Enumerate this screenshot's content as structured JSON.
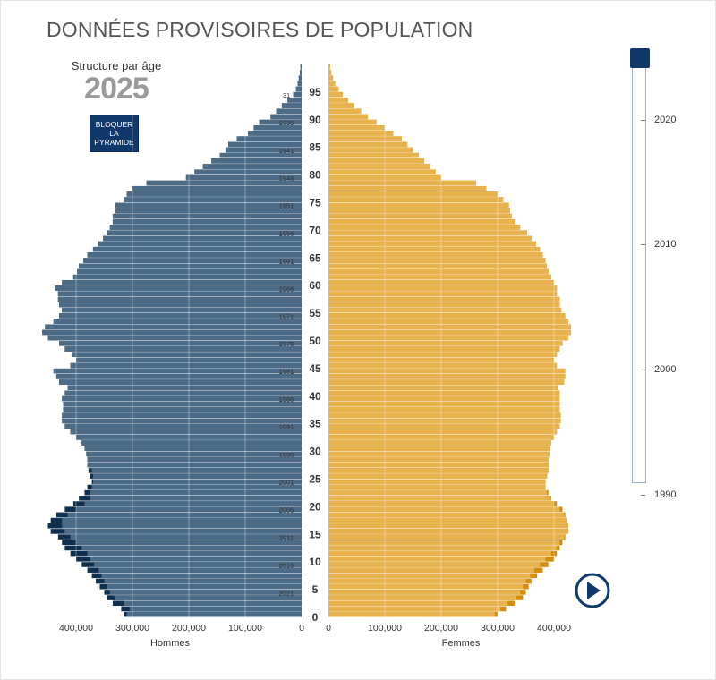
{
  "title": "DONNÉES PROVISOIRES DE POPULATION",
  "subtitle": "Structure par âge",
  "year": "2025",
  "lock_button_label": "BLOQUER\nLA\nPYRAMIDE",
  "slider": {
    "labels": [
      "2020",
      "2010",
      "2000",
      "1990"
    ],
    "selected": "2025"
  },
  "colors": {
    "men_dark": "#0f2f4f",
    "men": "#4b6b86",
    "women_dark": "#d48c0a",
    "women": "#e8b24e",
    "accent": "#11386b"
  },
  "chart_data": {
    "type": "bar",
    "orientation": "horizontal-pyramid",
    "age_ticks": [
      0,
      5,
      10,
      15,
      20,
      25,
      30,
      35,
      40,
      45,
      50,
      55,
      60,
      65,
      70,
      75,
      80,
      85,
      90,
      95
    ],
    "age_max": 100,
    "birth_year_labels": [
      {
        "age": 4,
        "label": "2021"
      },
      {
        "age": 9,
        "label": "2016"
      },
      {
        "age": 14,
        "label": "2011"
      },
      {
        "age": 19,
        "label": "2006"
      },
      {
        "age": 24,
        "label": "2001"
      },
      {
        "age": 29,
        "label": "1996"
      },
      {
        "age": 34,
        "label": "1991"
      },
      {
        "age": 39,
        "label": "1986"
      },
      {
        "age": 44,
        "label": "1981"
      },
      {
        "age": 49,
        "label": "1976"
      },
      {
        "age": 54,
        "label": "1971"
      },
      {
        "age": 59,
        "label": "1966"
      },
      {
        "age": 64,
        "label": "1961"
      },
      {
        "age": 69,
        "label": "1956"
      },
      {
        "age": 74,
        "label": "1951"
      },
      {
        "age": 79,
        "label": "1946"
      },
      {
        "age": 84,
        "label": "1941"
      },
      {
        "age": 89,
        "label": "1936"
      },
      {
        "age": 94,
        "label": "31"
      }
    ],
    "x_ticks": [
      400000,
      300000,
      200000,
      100000,
      0
    ],
    "x_tick_labels_men": [
      "400,000",
      "300,000",
      "200,000",
      "100,000",
      "0"
    ],
    "x_tick_labels_women": [
      "0",
      "100,000",
      "200,000",
      "300,000",
      "400,000"
    ],
    "xlim": [
      0,
      460000
    ],
    "series": [
      {
        "name": "Hommes",
        "values": [
          315000,
          320000,
          335000,
          345000,
          350000,
          358000,
          365000,
          372000,
          380000,
          390000,
          400000,
          410000,
          420000,
          425000,
          432000,
          445000,
          450000,
          445000,
          435000,
          420000,
          405000,
          395000,
          385000,
          380000,
          372000,
          375000,
          378000,
          380000,
          380000,
          382000,
          385000,
          390000,
          400000,
          410000,
          420000,
          425000,
          425000,
          423000,
          423000,
          425000,
          420000,
          415000,
          430000,
          435000,
          440000,
          410000,
          400000,
          408000,
          420000,
          430000,
          450000,
          460000,
          455000,
          440000,
          430000,
          425000,
          430000,
          432000,
          432000,
          437000,
          425000,
          405000,
          398000,
          395000,
          387000,
          380000,
          370000,
          360000,
          352000,
          345000,
          340000,
          335000,
          335000,
          330000,
          330000,
          315000,
          310000,
          300000,
          275000,
          205000,
          190000,
          175000,
          160000,
          145000,
          135000,
          130000,
          115000,
          95000,
          85000,
          75000,
          55000,
          45000,
          35000,
          25000,
          15000,
          10000,
          7000,
          5000,
          3000,
          2000
        ],
        "compare_values": [
          310000,
          305000,
          315000,
          332000,
          340000,
          345000,
          350000,
          355000,
          360000,
          368000,
          375000,
          380000,
          390000,
          400000,
          410000,
          420000,
          425000,
          425000,
          415000,
          400000,
          385000,
          375000,
          375000,
          372000,
          370000,
          370000,
          372000,
          380000,
          380000,
          382000,
          385000,
          390000,
          400000,
          410000,
          420000,
          425000,
          425000,
          423000,
          423000,
          425000,
          420000,
          415000,
          430000,
          435000,
          440000,
          410000,
          400000,
          408000,
          420000,
          430000,
          450000,
          460000,
          455000,
          440000,
          430000,
          425000,
          430000,
          432000,
          432000,
          437000,
          425000,
          405000,
          398000,
          395000,
          387000,
          380000,
          370000,
          360000,
          352000,
          345000,
          340000,
          335000,
          335000,
          330000,
          330000,
          315000,
          310000,
          300000,
          275000,
          205000,
          190000,
          175000,
          160000,
          145000,
          135000,
          130000,
          115000,
          95000,
          85000,
          75000,
          55000,
          45000,
          35000,
          25000,
          15000,
          10000,
          7000,
          5000,
          3000,
          2000
        ]
      },
      {
        "name": "Femmes",
        "values": [
          300000,
          315000,
          330000,
          345000,
          350000,
          355000,
          360000,
          370000,
          380000,
          390000,
          400000,
          405000,
          410000,
          415000,
          420000,
          425000,
          425000,
          423000,
          420000,
          415000,
          405000,
          395000,
          390000,
          385000,
          385000,
          388000,
          390000,
          390000,
          390000,
          392000,
          393000,
          395000,
          400000,
          405000,
          410000,
          412000,
          412000,
          410000,
          410000,
          410000,
          410000,
          408000,
          418000,
          420000,
          420000,
          405000,
          400000,
          405000,
          410000,
          415000,
          425000,
          430000,
          430000,
          425000,
          420000,
          413000,
          410000,
          410000,
          405000,
          405000,
          400000,
          395000,
          390000,
          387000,
          385000,
          380000,
          375000,
          368000,
          360000,
          352000,
          340000,
          330000,
          325000,
          322000,
          320000,
          310000,
          300000,
          280000,
          262000,
          200000,
          190000,
          180000,
          170000,
          160000,
          150000,
          140000,
          130000,
          115000,
          100000,
          85000,
          70000,
          58000,
          45000,
          35000,
          25000,
          18000,
          12000,
          8000,
          5000,
          3000
        ],
        "compare_values": [
          295000,
          305000,
          318000,
          332000,
          340000,
          345000,
          350000,
          358000,
          365000,
          375000,
          385000,
          395000,
          405000,
          410000,
          418000,
          423000,
          425000,
          423000,
          418000,
          410000,
          400000,
          392000,
          387000,
          385000,
          385000,
          388000,
          390000,
          390000,
          390000,
          392000,
          393000,
          395000,
          400000,
          405000,
          410000,
          412000,
          412000,
          410000,
          410000,
          410000,
          410000,
          408000,
          418000,
          420000,
          420000,
          405000,
          400000,
          405000,
          410000,
          415000,
          425000,
          430000,
          430000,
          425000,
          420000,
          413000,
          410000,
          410000,
          405000,
          405000,
          400000,
          395000,
          390000,
          387000,
          385000,
          380000,
          375000,
          368000,
          360000,
          352000,
          340000,
          330000,
          325000,
          322000,
          320000,
          310000,
          300000,
          280000,
          262000,
          200000,
          190000,
          180000,
          170000,
          160000,
          150000,
          140000,
          130000,
          115000,
          100000,
          85000,
          70000,
          58000,
          45000,
          35000,
          25000,
          18000,
          12000,
          8000,
          5000,
          3000
        ]
      }
    ],
    "xlabel_left": "Hommes",
    "xlabel_right": "Femmes",
    "grid": true
  }
}
